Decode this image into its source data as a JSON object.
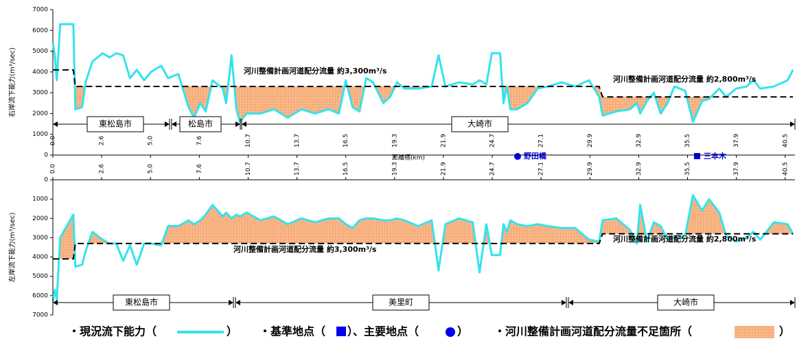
{
  "x_axis_label": "距離標(km)",
  "points": [
    "野田橋",
    "三本木"
  ],
  "legend": {
    "capacity": "・現況流下能力（",
    "capacity_end": "）",
    "points": "・基準地点（",
    "points_mid": "）、主要地点（",
    "points_end": "）",
    "shortfall": "・河川整備計画河道配分流量不足箇所（",
    "shortfall_end": "）"
  },
  "chart_data": [
    {
      "type": "line",
      "y_label": "右岸流下能力(m³/sec)",
      "ylim": [
        0,
        7000
      ],
      "yticks": [
        0,
        1000,
        2000,
        3000,
        4000,
        5000,
        6000,
        7000
      ],
      "xlim": [
        0,
        15.2
      ],
      "xticks": [
        {
          "value": 0,
          "label": "0.0"
        },
        {
          "value": 1,
          "label": "2.6"
        },
        {
          "value": 2,
          "label": "5.0"
        },
        {
          "value": 3,
          "label": "7.6"
        },
        {
          "value": 4,
          "label": "10.7"
        },
        {
          "value": 5,
          "label": "13.7"
        },
        {
          "value": 6,
          "label": "16.5"
        },
        {
          "value": 7,
          "label": "19.3"
        },
        {
          "value": 8,
          "label": "21.9"
        },
        {
          "value": 9,
          "label": "24.7"
        },
        {
          "value": 10,
          "label": "27.1"
        },
        {
          "value": 11,
          "label": "29.9"
        },
        {
          "value": 12,
          "label": "32.9"
        },
        {
          "value": 13,
          "label": "35.5"
        },
        {
          "value": 14,
          "label": "37.9"
        },
        {
          "value": 15,
          "label": "40.5"
        }
      ],
      "series": [
        {
          "color": "#33e3ec",
          "x": [
            0,
            0.04,
            0.08,
            0.15,
            0.42,
            0.46,
            0.6,
            0.67,
            0.81,
            1.02,
            1.16,
            1.3,
            1.44,
            1.58,
            1.72,
            1.87,
            2.01,
            2.22,
            2.36,
            2.57,
            2.78,
            2.89,
            3.02,
            3.13,
            3.27,
            3.48,
            3.55,
            3.66,
            3.76,
            3.83,
            3.97,
            4.25,
            4.53,
            4.81,
            5.09,
            5.37,
            5.65,
            5.86,
            6.0,
            6.14,
            6.28,
            6.42,
            6.56,
            6.77,
            6.91,
            7.05,
            7.2,
            7.48,
            7.76,
            7.9,
            8.04,
            8.32,
            8.6,
            8.74,
            8.88,
            8.99,
            9.16,
            9.23,
            9.3,
            9.37,
            9.51,
            9.72,
            9.93,
            10.14,
            10.42,
            10.7,
            10.98,
            11.19,
            11.26,
            11.54,
            11.82,
            11.96,
            12.03,
            12.17,
            12.31,
            12.45,
            12.59,
            12.73,
            12.95,
            13.11,
            13.3,
            13.44,
            13.65,
            13.79,
            14.0,
            14.21,
            14.35,
            14.49,
            14.77,
            15.05,
            15.16
          ],
          "values": [
            5400,
            4800,
            3600,
            6300,
            6300,
            2200,
            2300,
            3500,
            4500,
            4900,
            4700,
            4900,
            4800,
            3700,
            4100,
            3600,
            4000,
            4300,
            3700,
            3900,
            2300,
            1800,
            2500,
            2100,
            3600,
            3200,
            2500,
            4800,
            2200,
            1600,
            2000,
            2000,
            2200,
            1800,
            2200,
            2000,
            2200,
            2000,
            3600,
            2300,
            2100,
            3700,
            3500,
            2500,
            2800,
            3500,
            3200,
            3200,
            3300,
            4800,
            3300,
            3500,
            3400,
            3600,
            3400,
            4900,
            4900,
            2500,
            3300,
            2200,
            2200,
            2500,
            3200,
            3300,
            3500,
            3300,
            3600,
            2800,
            1900,
            2100,
            2200,
            2500,
            2000,
            2600,
            3000,
            2000,
            2500,
            3300,
            3100,
            1600,
            2600,
            2700,
            3200,
            2800,
            3200,
            3300,
            3600,
            3200,
            3300,
            3600,
            4100
          ]
        },
        {
          "color": "#000000",
          "dashed": true,
          "x": [
            0,
            0.42,
            0.46,
            11.19,
            11.26,
            15.16
          ],
          "values": [
            4100,
            4100,
            3300,
            3300,
            2800,
            2800
          ]
        }
      ],
      "annotations": [
        "河川整備計画河道配分流量 約3,300m³/s",
        "河川整備計画河道配分流量 約2,800m³/s"
      ],
      "regions": [
        "東松島市",
        "松島市",
        "大崎市"
      ]
    },
    {
      "type": "line",
      "y_label": "左岸流下能力(m³/sec)",
      "ylim": [
        7000,
        0
      ],
      "yticks": [
        0,
        1000,
        2000,
        3000,
        4000,
        5000,
        6000,
        7000
      ],
      "xlim": [
        0,
        15.2
      ],
      "xticks": [
        {
          "value": 0,
          "label": "0.0"
        },
        {
          "value": 1,
          "label": "2.6"
        },
        {
          "value": 2,
          "label": "5.0"
        },
        {
          "value": 3,
          "label": "7.6"
        },
        {
          "value": 4,
          "label": "10.7"
        },
        {
          "value": 5,
          "label": "13.7"
        },
        {
          "value": 6,
          "label": "16.5"
        },
        {
          "value": 7,
          "label": "19.3"
        },
        {
          "value": 8,
          "label": "21.9"
        },
        {
          "value": 9,
          "label": "24.7"
        },
        {
          "value": 10,
          "label": "27.1"
        },
        {
          "value": 11,
          "label": "29.9"
        },
        {
          "value": 12,
          "label": "32.9"
        },
        {
          "value": 13,
          "label": "35.5"
        },
        {
          "value": 14,
          "label": "37.9"
        },
        {
          "value": 15,
          "label": "40.5"
        }
      ],
      "series": [
        {
          "color": "#33e3ec",
          "x": [
            0,
            0.04,
            0.08,
            0.15,
            0.42,
            0.46,
            0.6,
            0.67,
            0.81,
            1.02,
            1.16,
            1.3,
            1.44,
            1.58,
            1.72,
            1.87,
            2.01,
            2.22,
            2.36,
            2.57,
            2.78,
            2.89,
            3.02,
            3.13,
            3.27,
            3.48,
            3.55,
            3.66,
            3.76,
            3.83,
            3.97,
            4.25,
            4.53,
            4.81,
            5.09,
            5.37,
            5.65,
            5.86,
            6.0,
            6.14,
            6.28,
            6.42,
            6.56,
            6.77,
            6.91,
            7.05,
            7.2,
            7.48,
            7.76,
            7.9,
            8.04,
            8.32,
            8.6,
            8.74,
            8.88,
            8.99,
            9.16,
            9.23,
            9.3,
            9.37,
            9.51,
            9.72,
            9.93,
            10.14,
            10.42,
            10.7,
            10.98,
            11.19,
            11.26,
            11.54,
            11.82,
            11.96,
            12.03,
            12.17,
            12.31,
            12.45,
            12.59,
            12.73,
            12.95,
            13.11,
            13.3,
            13.44,
            13.65,
            13.79,
            14.0,
            14.21,
            14.35,
            14.49,
            14.77,
            15.05,
            15.16
          ],
          "values": [
            6300,
            5700,
            6200,
            3000,
            1800,
            4500,
            4400,
            3700,
            2700,
            3100,
            3300,
            3300,
            4200,
            3400,
            4400,
            3300,
            3300,
            3400,
            2400,
            2400,
            2100,
            2300,
            2100,
            1800,
            1300,
            1900,
            1700,
            2000,
            1800,
            1900,
            1700,
            2100,
            1900,
            2300,
            2000,
            2200,
            2000,
            2000,
            2300,
            2500,
            2100,
            2000,
            2000,
            2100,
            2100,
            2000,
            2100,
            2400,
            2100,
            4700,
            2300,
            2000,
            2200,
            4800,
            2300,
            3900,
            3900,
            2300,
            2700,
            2100,
            2300,
            2400,
            2300,
            2400,
            2500,
            2500,
            3100,
            3200,
            2100,
            2000,
            2600,
            3300,
            1300,
            3200,
            2200,
            2400,
            3100,
            3000,
            2900,
            800,
            1600,
            1000,
            1700,
            2900,
            3200,
            3000,
            2700,
            3100,
            2200,
            2300,
            2800
          ]
        },
        {
          "color": "#000000",
          "dashed": true,
          "x": [
            0,
            0.42,
            0.46,
            11.19,
            11.26,
            15.16
          ],
          "values": [
            4100,
            4100,
            3300,
            3300,
            2800,
            2800
          ]
        }
      ],
      "annotations": [
        "河川整備計画河道配分流量 約3,300m³/s",
        "河川整備計画河道配分流量 約2,800m³/s"
      ],
      "regions": [
        "東松島市",
        "美里町",
        "大崎市"
      ]
    }
  ]
}
